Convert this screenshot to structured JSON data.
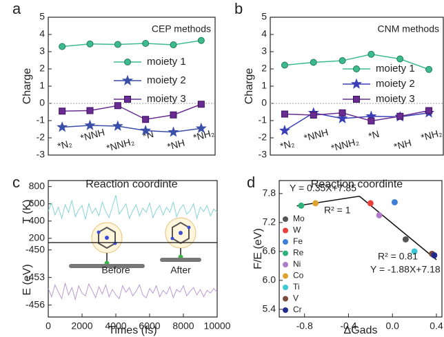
{
  "chart_data": [
    {
      "type": "line",
      "panel_label": "a",
      "title": "CEP methods",
      "xlabel": "Reaction coordinte",
      "ylabel": "Charge",
      "categories": [
        "*N₂",
        "*NNH",
        "*NNH₂",
        "*N",
        "*NH",
        "*NH₂"
      ],
      "ylim": [
        -3,
        5
      ],
      "yticks": [
        -3,
        -2,
        -1,
        0,
        1,
        2,
        3,
        4,
        5
      ],
      "series": [
        {
          "name": "moiety 1",
          "color": "#3dbb8f",
          "marker": "circle",
          "values": [
            3.3,
            3.45,
            3.42,
            3.48,
            3.4,
            3.65
          ]
        },
        {
          "name": "moiety 2",
          "color": "#3a4fa8",
          "marker": "star",
          "values": [
            -1.38,
            -1.28,
            -1.32,
            -1.58,
            -1.67,
            -1.45
          ]
        },
        {
          "name": "moiety 3",
          "color": "#6a2c91",
          "marker": "square",
          "values": [
            -0.45,
            -0.42,
            -0.13,
            -0.93,
            -0.67,
            -0.05
          ]
        }
      ]
    },
    {
      "type": "line",
      "panel_label": "b",
      "title": "CNM methods",
      "xlabel": "Reaction coordinte",
      "ylabel": "Charge",
      "categories": [
        "*N₂",
        "*NNH",
        "*NNH₂",
        "*N",
        "*NH",
        "*NH₂"
      ],
      "ylim": [
        -3,
        5
      ],
      "yticks": [
        -3,
        -2,
        -1,
        0,
        1,
        2,
        3,
        4,
        5
      ],
      "series": [
        {
          "name": "moiety 1",
          "color": "#3dbb8f",
          "marker": "circle",
          "values": [
            2.22,
            2.38,
            2.48,
            2.85,
            2.58,
            1.97
          ]
        },
        {
          "name": "moiety 2",
          "color": "#3a3fb8",
          "marker": "star",
          "values": [
            -1.58,
            -0.55,
            -0.88,
            -0.75,
            -0.78,
            -0.55
          ]
        },
        {
          "name": "moiety 3",
          "color": "#6a2c91",
          "marker": "square",
          "values": [
            -0.62,
            -0.68,
            -0.55,
            -1.02,
            -0.75,
            -0.42
          ]
        }
      ]
    },
    {
      "type": "line",
      "panel_label": "c",
      "ylabel": "T (K)",
      "x": [
        0,
        200,
        400,
        600,
        800,
        1000,
        1200,
        1400,
        1600,
        1800,
        2000,
        2200,
        2400,
        2600,
        2800,
        3000,
        3200,
        3400,
        3600,
        3800,
        4000,
        4200,
        4400,
        4600,
        4800,
        5000,
        5200,
        5400,
        5600,
        5800,
        6000,
        6200,
        6400,
        6600,
        6800,
        7000,
        7200,
        7400,
        7600,
        7800,
        8000,
        8200,
        8400,
        8600,
        8800,
        9000,
        9200,
        9400,
        9600,
        9800,
        10000
      ],
      "xlim": [
        0,
        10000
      ],
      "ylim": [
        150,
        870
      ],
      "yticks": [
        200,
        400,
        600,
        800
      ],
      "series": [
        {
          "color": "#86d4d4",
          "values": [
            520,
            610,
            470,
            560,
            430,
            590,
            500,
            640,
            450,
            530,
            580,
            420,
            600,
            490,
            550,
            460,
            620,
            510,
            440,
            570,
            700,
            480,
            540,
            600,
            430,
            520,
            590,
            460,
            550,
            500,
            610,
            440,
            530,
            580,
            470,
            560,
            500,
            620,
            450,
            540,
            590,
            480,
            520,
            600,
            430,
            560,
            510,
            580,
            460,
            540,
            500
          ]
        }
      ]
    },
    {
      "type": "line",
      "ylabel": "E (eV)",
      "xlabel": "Times (fs)",
      "annotations": [
        "Before",
        "After"
      ],
      "x": [
        0,
        200,
        400,
        600,
        800,
        1000,
        1200,
        1400,
        1600,
        1800,
        2000,
        2200,
        2400,
        2600,
        2800,
        3000,
        3200,
        3400,
        3600,
        3800,
        4000,
        4200,
        4400,
        4600,
        4800,
        5000,
        5200,
        5400,
        5600,
        5800,
        6000,
        6200,
        6400,
        6600,
        6800,
        7000,
        7200,
        7400,
        7600,
        7800,
        8000,
        8200,
        8400,
        8600,
        8800,
        9000,
        9200,
        9400,
        9600,
        9800,
        10000
      ],
      "xlim": [
        0,
        10000
      ],
      "xticks": [
        0,
        2000,
        4000,
        6000,
        8000,
        10000
      ],
      "ylim": [
        -457.3,
        -449.2
      ],
      "yticks": [
        -456,
        -453,
        -450
      ],
      "series": [
        {
          "color": "#b99ad3",
          "values": [
            -454.2,
            -455.1,
            -453.8,
            -454.6,
            -455.3,
            -453.6,
            -454.9,
            -454.1,
            -455.4,
            -453.9,
            -454.7,
            -455.0,
            -453.7,
            -454.4,
            -455.2,
            -454.0,
            -454.8,
            -453.8,
            -455.1,
            -454.3,
            -454.9,
            -455.3,
            -453.9,
            -454.6,
            -454.1,
            -455.0,
            -454.5,
            -453.8,
            -454.9,
            -455.2,
            -454.2,
            -454.7,
            -453.9,
            -455.1,
            -454.4,
            -454.8,
            -454.0,
            -455.2,
            -454.3,
            -454.6,
            -453.9,
            -455.0,
            -454.5,
            -454.1,
            -454.9,
            -454.3,
            -455.1,
            -454.4,
            -454.7,
            -454.2,
            -454.6
          ]
        }
      ]
    },
    {
      "type": "scatter",
      "panel_label": "d",
      "xlabel": "ΔGads",
      "ylabel": "F/E (eV)",
      "annotations": [
        "Y = 0.35X+7.85",
        "R² = 1",
        "R² = 0.81",
        "Y = -1.88X+7.18"
      ],
      "xlim": [
        -1.03,
        0.45
      ],
      "xticks": [
        -0.8,
        -0.4,
        {
          "value": 0,
          "label": "0.0"
        },
        0.4
      ],
      "ylim": [
        5.24,
        8.07
      ],
      "yticks": [
        5.4,
        {
          "value": 6,
          "label": "6.0"
        },
        6.6,
        7.2,
        7.8
      ],
      "fit_lines": [
        {
          "x": [
            -0.87,
            -0.3
          ],
          "y": [
            7.545,
            7.745
          ]
        },
        {
          "x": [
            -0.3,
            0.4
          ],
          "y": [
            7.745,
            6.428
          ]
        }
      ],
      "series": [
        {
          "name": "Mo",
          "color": "#555555",
          "x": [
            0.12
          ],
          "values": [
            6.85
          ]
        },
        {
          "name": "W",
          "color": "#e8413c",
          "x": [
            -0.2
          ],
          "values": [
            7.6
          ]
        },
        {
          "name": "Fe",
          "color": "#3d7fd6",
          "x": [
            0.02
          ],
          "values": [
            7.62
          ]
        },
        {
          "name": "Re",
          "color": "#2db37a",
          "x": [
            -0.83
          ],
          "values": [
            7.55
          ]
        },
        {
          "name": "Ni",
          "color": "#b07cc6",
          "x": [
            -0.12
          ],
          "values": [
            7.35
          ]
        },
        {
          "name": "Co",
          "color": "#e0a030",
          "x": [
            -0.7
          ],
          "values": [
            7.6
          ]
        },
        {
          "name": "Ti",
          "color": "#3bc7d6",
          "x": [
            0.2
          ],
          "values": [
            6.6
          ]
        },
        {
          "name": "V",
          "color": "#7a4a3a",
          "x": [
            0.36
          ],
          "values": [
            6.55
          ]
        },
        {
          "name": "Cr",
          "color": "#1f2a8a",
          "x": [
            0.38
          ],
          "values": [
            6.52
          ]
        }
      ]
    }
  ]
}
